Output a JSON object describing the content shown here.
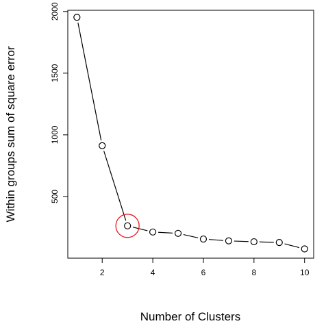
{
  "chart_data": {
    "type": "line",
    "title": "",
    "xlabel": "Number of Clusters",
    "ylabel": "Within groups sum of square error",
    "x": [
      1,
      2,
      3,
      4,
      5,
      6,
      7,
      8,
      9,
      10
    ],
    "series": [
      {
        "values": [
          1953,
          912,
          262,
          212,
          201,
          155,
          140,
          133,
          127,
          75
        ]
      }
    ],
    "xticks": [
      "2",
      "4",
      "6",
      "8",
      "10"
    ],
    "yticks": [
      "500",
      "1000",
      "1500",
      "2000"
    ],
    "xlim": [
      0.64,
      10.36
    ],
    "ylim": [
      0,
      2010
    ],
    "grid": false,
    "highlight": {
      "x": 3,
      "y": 262,
      "color": "#e31a1c"
    },
    "colors": {
      "line": "#000000",
      "highlight": "#e31a1c"
    }
  }
}
